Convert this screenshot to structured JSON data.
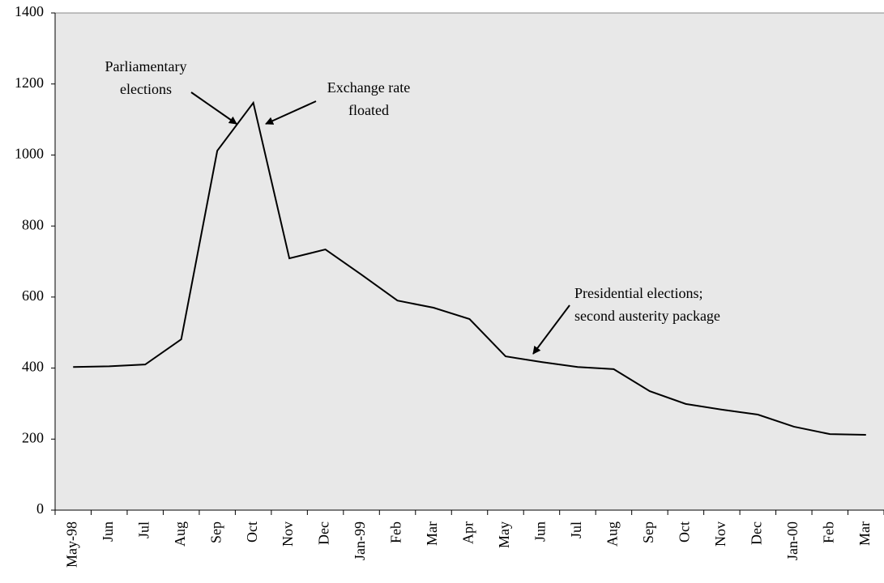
{
  "chart_data": {
    "type": "line",
    "categories": [
      "May-98",
      "Jun",
      "Jul",
      "Aug",
      "Sep",
      "Oct",
      "Nov",
      "Dec",
      "Jan-99",
      "Feb",
      "Mar",
      "Apr",
      "May",
      "Jun",
      "Jul",
      "Aug",
      "Sep",
      "Oct",
      "Nov",
      "Dec",
      "Jan-00",
      "Feb",
      "Mar"
    ],
    "values": [
      403,
      405,
      410,
      481,
      1012,
      1147,
      709,
      734,
      663,
      590,
      570,
      538,
      433,
      417,
      403,
      397,
      335,
      299,
      283,
      269,
      235,
      214,
      212
    ],
    "color": "#000000",
    "ylim": [
      0,
      1400
    ],
    "yticks": [
      0,
      200,
      400,
      600,
      800,
      1000,
      1200,
      1400
    ],
    "annotations": [
      {
        "lines": [
          "Parliamentary",
          "elections"
        ]
      },
      {
        "lines": [
          "Exchange rate",
          "floated"
        ]
      },
      {
        "lines": [
          "Presidential elections;",
          "second austerity package"
        ]
      }
    ]
  }
}
